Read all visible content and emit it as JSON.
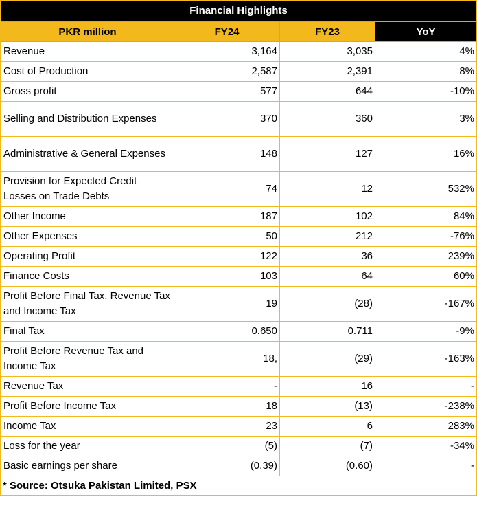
{
  "title": "Financial Highlights",
  "colors": {
    "accent": "#f2b81c",
    "header_dark": "#000000"
  },
  "columns": [
    "PKR million",
    "FY24",
    "FY23",
    "YoY"
  ],
  "rows": [
    {
      "label": "Revenue",
      "fy24": "3,164",
      "fy23": "3,035",
      "yoy": "4%"
    },
    {
      "label": "Cost of Production",
      "fy24": "2,587",
      "fy23": "2,391",
      "yoy": "8%"
    },
    {
      "label": "Gross profit",
      "fy24": "577",
      "fy23": "644",
      "yoy": "-10%"
    },
    {
      "label": "Selling and Distribution Expenses",
      "fy24": "370",
      "fy23": "360",
      "yoy": "3%",
      "tall": true
    },
    {
      "label": "Administrative & General Expenses",
      "fy24": "148",
      "fy23": "127",
      "yoy": "16%",
      "tall": true
    },
    {
      "label": "Provision for Expected Credit Losses on Trade Debts",
      "fy24": "74",
      "fy23": "12",
      "yoy": "532%",
      "tall": true
    },
    {
      "label": "Other Income",
      "fy24": "187",
      "fy23": "102",
      "yoy": "84%"
    },
    {
      "label": "Other Expenses",
      "fy24": "50",
      "fy23": "212",
      "yoy": "-76%"
    },
    {
      "label": "Operating Profit",
      "fy24": "122",
      "fy23": "36",
      "yoy": "239%"
    },
    {
      "label": "Finance Costs",
      "fy24": "103",
      "fy23": "64",
      "yoy": "60%"
    },
    {
      "label": "Profit Before Final Tax, Revenue Tax and Income Tax",
      "fy24": "19",
      "fy23": "(28)",
      "yoy": "-167%",
      "tall": true
    },
    {
      "label": "Final Tax",
      "fy24": "0.650",
      "fy23": "0.711",
      "yoy": "-9%"
    },
    {
      "label": "Profit Before Revenue Tax and Income Tax",
      "fy24": "18,",
      "fy23": "(29)",
      "yoy": "-163%",
      "tall": true
    },
    {
      "label": "Revenue Tax",
      "fy24": "-",
      "fy23": "16",
      "yoy": "-"
    },
    {
      "label": "Profit Before Income Tax",
      "fy24": "18",
      "fy23": "(13)",
      "yoy": "-238%"
    },
    {
      "label": "Income Tax",
      "fy24": "23",
      "fy23": "6",
      "yoy": "283%"
    },
    {
      "label": "Loss for the year",
      "fy24": "(5)",
      "fy23": "(7)",
      "yoy": "-34%"
    },
    {
      "label": "Basic earnings per share",
      "fy24": "(0.39)",
      "fy23": "(0.60)",
      "yoy": "-"
    }
  ],
  "footer": "* Source: Otsuka Pakistan Limited, PSX"
}
